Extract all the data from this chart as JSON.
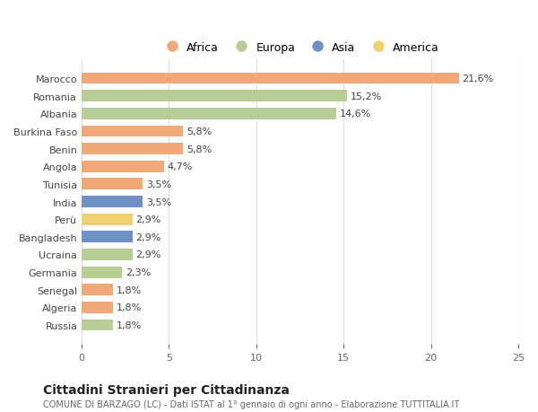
{
  "countries": [
    "Russia",
    "Algeria",
    "Senegal",
    "Germania",
    "Ucraina",
    "Bangladesh",
    "Perù",
    "India",
    "Tunisia",
    "Angola",
    "Benin",
    "Burkina Faso",
    "Albania",
    "Romania",
    "Marocco"
  ],
  "values": [
    1.8,
    1.8,
    1.8,
    2.3,
    2.9,
    2.9,
    2.9,
    3.5,
    3.5,
    4.7,
    5.8,
    5.8,
    14.6,
    15.2,
    21.6
  ],
  "labels": [
    "1,8%",
    "1,8%",
    "1,8%",
    "2,3%",
    "2,9%",
    "2,9%",
    "2,9%",
    "3,5%",
    "3,5%",
    "4,7%",
    "5,8%",
    "5,8%",
    "14,6%",
    "15,2%",
    "21,6%"
  ],
  "continents": [
    "Europa",
    "Africa",
    "Africa",
    "Europa",
    "Europa",
    "Asia",
    "America",
    "Asia",
    "Africa",
    "Africa",
    "Africa",
    "Africa",
    "Europa",
    "Europa",
    "Africa"
  ],
  "continent_colors": {
    "Africa": "#F0A878",
    "Europa": "#B8CC96",
    "Asia": "#7090C8",
    "America": "#F0D070"
  },
  "legend_items": [
    "Africa",
    "Europa",
    "Asia",
    "America"
  ],
  "legend_colors": [
    "#F0A878",
    "#B8CC96",
    "#7090C8",
    "#F0D070"
  ],
  "title": "Cittadini Stranieri per Cittadinanza",
  "subtitle": "COMUNE DI BARZAGO (LC) - Dati ISTAT al 1° gennaio di ogni anno - Elaborazione TUTTITALIA.IT",
  "xlim": [
    0,
    25
  ],
  "xticks": [
    0,
    5,
    10,
    15,
    20,
    25
  ],
  "bg_color": "#FFFFFF",
  "grid_color": "#DDDDDD",
  "bar_height": 0.65
}
